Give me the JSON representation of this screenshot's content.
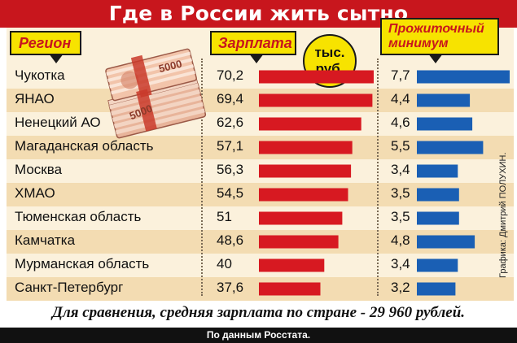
{
  "title": "Где в России жить сытно",
  "headers": {
    "region": "Регион",
    "salary": "Зарплата",
    "unit": "тыс. руб.",
    "min_line1": "Прожиточный",
    "min_line2": "минимум"
  },
  "credit": "Графика: Дмитрий ПОЛУХИН.",
  "comparison": "Для сравнения, средняя зарплата по стране - 29 960 рублей.",
  "source": "По данным Росстата.",
  "colors": {
    "salary_bar": "#d71921",
    "minimum_bar": "#1a5fb4",
    "header": "#c8161d",
    "label_bg": "#f7e300"
  },
  "banknote_denomination": "5000",
  "chart_data": {
    "type": "bar",
    "categories": [
      "Чукотка",
      "ЯНАО",
      "Ненецкий АО",
      "Магаданская область",
      "Москва",
      "ХМАО",
      "Тюменская область",
      "Камчатка",
      "Мурманская область",
      "Санкт-Петербург"
    ],
    "series": [
      {
        "name": "Зарплата",
        "values": [
          70.2,
          69.4,
          62.6,
          57.1,
          56.3,
          54.5,
          51,
          48.6,
          40,
          37.6
        ],
        "labels": [
          "70,2",
          "69,4",
          "62,6",
          "57,1",
          "56,3",
          "54,5",
          "51",
          "48,6",
          "40",
          "37,6"
        ]
      },
      {
        "name": "Прожиточный минимум",
        "values": [
          7.7,
          4.4,
          4.6,
          5.5,
          3.4,
          3.5,
          3.5,
          4.8,
          3.4,
          3.2
        ],
        "labels": [
          "7,7",
          "4,4",
          "4,6",
          "5,5",
          "3,4",
          "3,5",
          "3,5",
          "4,8",
          "3,4",
          "3,2"
        ]
      }
    ],
    "unit": "тыс. руб."
  }
}
